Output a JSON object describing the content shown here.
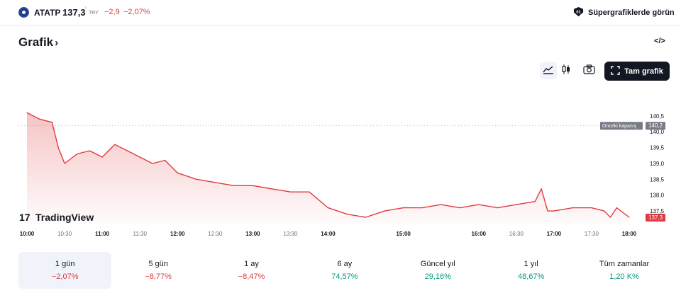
{
  "header": {
    "symbol": "ATATP",
    "price": "137,3",
    "price_marker": "°",
    "currency": "TRY",
    "change": "−2,9",
    "change_percent": "−2,07%",
    "supercharts_label": "Süpergrafiklerde görün"
  },
  "section": {
    "title": "Grafik",
    "chevron": "›",
    "embed_label": "</>"
  },
  "toolbar": {
    "area_icon": "area-chart-icon",
    "candles_icon": "candles-icon",
    "camera_icon": "camera-icon",
    "fullscreen_icon": "fullscreen-icon",
    "fullscreen_label": "Tam grafik"
  },
  "chart_data": {
    "type": "area",
    "symbol": "ATATP",
    "x_ticks": [
      "10:00",
      "10:30",
      "11:00",
      "11:30",
      "12:00",
      "12:30",
      "13:00",
      "13:30",
      "14:00",
      "15:00",
      "16:00",
      "16:30",
      "17:00",
      "17:30",
      "18:00"
    ],
    "bold_x_ticks": [
      "10:00",
      "11:00",
      "12:00",
      "13:00",
      "14:00",
      "15:00",
      "16:00",
      "17:00",
      "18:00"
    ],
    "y_ticks": [
      "140,5",
      "140,0",
      "139,5",
      "139,0",
      "138,5",
      "138,0",
      "137,5"
    ],
    "ylim": [
      137.1,
      141.3
    ],
    "previous_close": 140.2,
    "previous_close_label": "Önceki kapanış",
    "previous_close_value": "140,2",
    "last_price": 137.3,
    "last_price_label": "137,3",
    "line_color": "#e03a3e",
    "watermark": "TradingView",
    "series": [
      {
        "x": [
          "10:00",
          "10:10",
          "10:20",
          "10:25",
          "10:30",
          "10:40",
          "10:50",
          "11:00",
          "11:10",
          "11:20",
          "11:30",
          "11:40",
          "11:50",
          "12:00",
          "12:15",
          "12:30",
          "12:45",
          "13:00",
          "13:15",
          "13:30",
          "13:45",
          "14:00",
          "14:15",
          "14:30",
          "14:45",
          "15:00",
          "15:15",
          "15:30",
          "15:45",
          "16:00",
          "16:15",
          "16:30",
          "16:45",
          "16:50",
          "16:55",
          "17:00",
          "17:15",
          "17:30",
          "17:40",
          "17:45",
          "17:50",
          "18:00"
        ],
        "values": [
          140.6,
          140.4,
          140.3,
          139.5,
          139.0,
          139.3,
          139.4,
          139.2,
          139.6,
          139.4,
          139.2,
          139.0,
          139.1,
          138.7,
          138.5,
          138.4,
          138.3,
          138.3,
          138.2,
          138.1,
          138.1,
          137.6,
          137.4,
          137.3,
          137.5,
          137.6,
          137.6,
          137.7,
          137.6,
          137.7,
          137.6,
          137.7,
          137.8,
          138.2,
          137.5,
          137.5,
          137.6,
          137.6,
          137.5,
          137.3,
          137.6,
          137.3
        ]
      }
    ]
  },
  "periods": [
    {
      "label": "1 gün",
      "value": "−2,07%",
      "trend": "neg"
    },
    {
      "label": "5 gün",
      "value": "−8,77%",
      "trend": "neg"
    },
    {
      "label": "1 ay",
      "value": "−8,47%",
      "trend": "neg"
    },
    {
      "label": "6 ay",
      "value": "74,57%",
      "trend": "pos"
    },
    {
      "label": "Güncel yıl",
      "value": "29,16%",
      "trend": "pos"
    },
    {
      "label": "1 yıl",
      "value": "48,67%",
      "trend": "pos"
    },
    {
      "label": "Tüm zamanlar",
      "value": "1,20 K%",
      "trend": "pos"
    }
  ]
}
